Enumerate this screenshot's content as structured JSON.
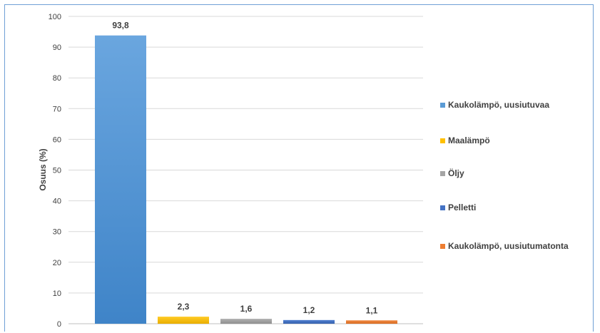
{
  "chart_data": {
    "type": "bar",
    "ylabel": "Osuus (%)",
    "ylim": [
      0,
      100
    ],
    "yticks": [
      "0",
      "10",
      "20",
      "30",
      "40",
      "50",
      "60",
      "70",
      "80",
      "90",
      "100"
    ],
    "grid": true,
    "legend_position": "right",
    "series": [
      {
        "name": "Kaukolämpö, uusiutuvaa",
        "value": 93.8,
        "label": "93,8",
        "color": "#5b9bd5"
      },
      {
        "name": "Maalämpö",
        "value": 2.3,
        "label": "2,3",
        "color": "#ffc000"
      },
      {
        "name": "Öljy",
        "value": 1.6,
        "label": "1,6",
        "color": "#a5a5a5"
      },
      {
        "name": "Pelletti",
        "value": 1.2,
        "label": "1,2",
        "color": "#4472c4"
      },
      {
        "name": "Kaukolämpö, uusiutumatonta",
        "value": 1.1,
        "label": "1,1",
        "color": "#ed7d31"
      }
    ]
  }
}
